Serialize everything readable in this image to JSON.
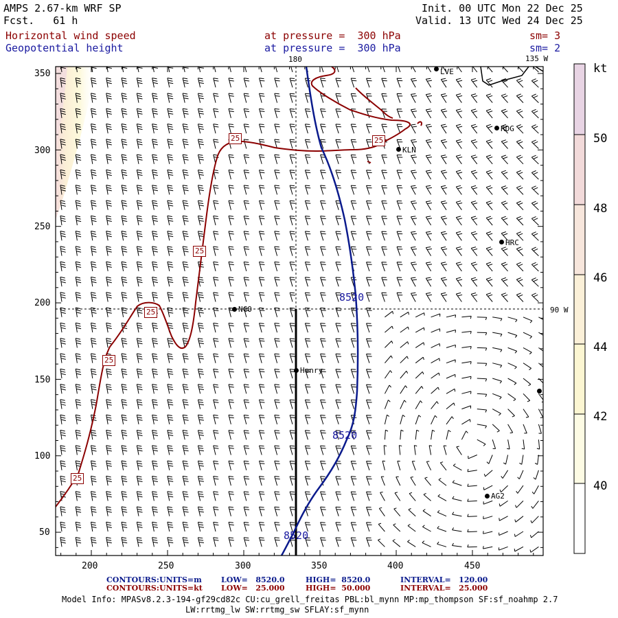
{
  "header": {
    "model": "AMPS 2.67-km WRF SP",
    "fcst": "Fcst.   61 h",
    "init": "Init. 00 UTC Mon 22 Dec 25",
    "valid": "Valid. 13 UTC Wed 24 Dec 25",
    "field1": "Horizontal wind speed",
    "field1_level": "at pressure =  300 hPa",
    "field1_sm": "sm= 3",
    "field2": "Geopotential height",
    "field2_level": "at pressure =  300 hPa",
    "field2_sm": "sm= 2"
  },
  "map": {
    "meridian_label_top": "180",
    "meridian_label_right": "135 W",
    "lon_label": "90 W",
    "x_ticks": [
      "200",
      "250",
      "300",
      "350",
      "400",
      "450"
    ],
    "y_ticks": [
      "350",
      "300",
      "250",
      "200",
      "150",
      "100",
      "50"
    ],
    "stations": [
      "LVE",
      "RDG",
      "KLN",
      "HRC",
      "NCO",
      "Henry",
      "AG2"
    ],
    "height_contour_labels": [
      "8520",
      "8520",
      "8520"
    ],
    "speed_contour_labels": [
      "25",
      "25",
      "25",
      "25",
      "25",
      "25"
    ],
    "colors": {
      "height_contour": "#0a1a8c",
      "speed_contour": "#8b0000",
      "grid": "#000000"
    }
  },
  "colorbar": {
    "unit": "kt",
    "labels": [
      "50",
      "48",
      "46",
      "44",
      "42",
      "40"
    ],
    "colors": [
      "#e8d4e4",
      "#f2dada",
      "#f7e6dc",
      "#fbf0d8",
      "#fcf6d2",
      "#fdfbe4",
      "#ffffff"
    ]
  },
  "footer": {
    "contours1_label": "CONTOURS:",
    "contours1_units": "UNITS=m",
    "contours1_low": "LOW=   8520.0",
    "contours1_high": "HIGH=  8520.0",
    "contours1_interval": "INTERVAL=   120.00",
    "contours2_label": "CONTOURS:",
    "contours2_units": "UNITS=kt",
    "contours2_low": "LOW=   25.000",
    "contours2_high": "HIGH=  50.000",
    "contours2_interval": "INTERVAL=   25.000",
    "model_info_1": "Model Info: MPASv8.2.3-194-gf29cd82c CU:cu_grell_freitas PBL:bl_mynn MP:mp_thompson SF:sf_noahmp 2.7",
    "model_info_2": "LW:rrtmg_lw SW:rrtmg_sw SFLAY:sf_mynn"
  }
}
